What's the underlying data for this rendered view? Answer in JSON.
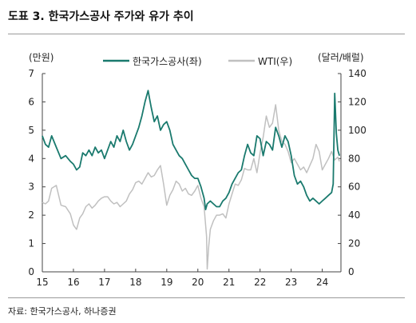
{
  "figure": {
    "title": "도표 3. 한국가스공사 주가와 유가 추이",
    "source": "자료: 한국가스공사, 하나증권"
  },
  "chart_data": {
    "type": "line",
    "x_tick_labels": [
      "15",
      "16",
      "17",
      "18",
      "19",
      "20",
      "21",
      "22",
      "23",
      "24"
    ],
    "xlim": [
      2015,
      2024.6
    ],
    "y_left": {
      "unit": "(만원)",
      "ylim": [
        0,
        7
      ],
      "ticks": [
        0,
        1,
        2,
        3,
        4,
        5,
        6,
        7
      ]
    },
    "y_right": {
      "unit": "(달러/배럴)",
      "ylim": [
        0,
        140
      ],
      "ticks": [
        0,
        20,
        40,
        60,
        80,
        100,
        120,
        140
      ]
    },
    "grid": false,
    "legend_position": "top",
    "series": [
      {
        "name": "한국가스공사(좌)",
        "axis": "left",
        "color": "#1a7a6e",
        "x": [
          2015.0,
          2015.1,
          2015.2,
          2015.3,
          2015.45,
          2015.6,
          2015.75,
          2015.9,
          2016.0,
          2016.1,
          2016.2,
          2016.3,
          2016.4,
          2016.5,
          2016.6,
          2016.7,
          2016.8,
          2016.9,
          2017.0,
          2017.1,
          2017.2,
          2017.3,
          2017.4,
          2017.5,
          2017.6,
          2017.7,
          2017.8,
          2017.9,
          2018.0,
          2018.1,
          2018.2,
          2018.3,
          2018.4,
          2018.45,
          2018.5,
          2018.6,
          2018.7,
          2018.8,
          2018.9,
          2019.0,
          2019.1,
          2019.2,
          2019.3,
          2019.4,
          2019.5,
          2019.6,
          2019.7,
          2019.8,
          2019.9,
          2020.0,
          2020.1,
          2020.2,
          2020.25,
          2020.3,
          2020.4,
          2020.5,
          2020.6,
          2020.7,
          2020.8,
          2020.9,
          2021.0,
          2021.1,
          2021.2,
          2021.3,
          2021.4,
          2021.5,
          2021.6,
          2021.7,
          2021.8,
          2021.9,
          2022.0,
          2022.1,
          2022.2,
          2022.3,
          2022.4,
          2022.5,
          2022.6,
          2022.7,
          2022.8,
          2022.9,
          2023.0,
          2023.1,
          2023.2,
          2023.3,
          2023.4,
          2023.5,
          2023.6,
          2023.7,
          2023.8,
          2023.9,
          2024.0,
          2024.1,
          2024.2,
          2024.3,
          2024.35,
          2024.4,
          2024.45,
          2024.5,
          2024.55
        ],
        "values": [
          4.8,
          4.5,
          4.4,
          4.8,
          4.4,
          4.0,
          4.1,
          3.9,
          3.8,
          3.6,
          3.7,
          4.2,
          4.1,
          4.3,
          4.1,
          4.4,
          4.2,
          4.3,
          4.0,
          4.3,
          4.6,
          4.4,
          4.8,
          4.6,
          5.0,
          4.6,
          4.3,
          4.5,
          4.8,
          5.1,
          5.5,
          6.0,
          6.4,
          6.1,
          5.8,
          5.3,
          5.5,
          5.0,
          5.2,
          5.3,
          5.0,
          4.5,
          4.3,
          4.1,
          4.0,
          3.8,
          3.6,
          3.4,
          3.3,
          3.3,
          3.0,
          2.6,
          2.2,
          2.4,
          2.5,
          2.4,
          2.3,
          2.3,
          2.5,
          2.6,
          2.8,
          3.1,
          3.3,
          3.5,
          3.6,
          4.1,
          4.5,
          4.2,
          4.1,
          4.8,
          4.7,
          4.1,
          4.6,
          4.5,
          4.3,
          5.1,
          4.8,
          4.4,
          4.8,
          4.6,
          4.1,
          3.4,
          3.1,
          3.2,
          3.0,
          2.7,
          2.5,
          2.6,
          2.5,
          2.4,
          2.5,
          2.6,
          2.7,
          2.8,
          3.1,
          6.3,
          4.9,
          4.3,
          4.1
        ]
      },
      {
        "name": "WTI(우)",
        "axis": "right",
        "color": "#c0c0c0",
        "x": [
          2015.0,
          2015.1,
          2015.2,
          2015.3,
          2015.45,
          2015.6,
          2015.75,
          2015.9,
          2016.0,
          2016.1,
          2016.2,
          2016.3,
          2016.4,
          2016.5,
          2016.6,
          2016.7,
          2016.8,
          2016.9,
          2017.0,
          2017.1,
          2017.2,
          2017.3,
          2017.4,
          2017.5,
          2017.6,
          2017.7,
          2017.8,
          2017.9,
          2018.0,
          2018.1,
          2018.2,
          2018.3,
          2018.4,
          2018.5,
          2018.6,
          2018.7,
          2018.8,
          2018.9,
          2019.0,
          2019.1,
          2019.2,
          2019.3,
          2019.4,
          2019.5,
          2019.6,
          2019.7,
          2019.8,
          2019.9,
          2020.0,
          2020.1,
          2020.2,
          2020.28,
          2020.3,
          2020.35,
          2020.4,
          2020.5,
          2020.6,
          2020.7,
          2020.8,
          2020.9,
          2021.0,
          2021.1,
          2021.2,
          2021.3,
          2021.4,
          2021.5,
          2021.6,
          2021.7,
          2021.8,
          2021.9,
          2022.0,
          2022.1,
          2022.2,
          2022.3,
          2022.4,
          2022.5,
          2022.6,
          2022.7,
          2022.8,
          2022.9,
          2023.0,
          2023.1,
          2023.2,
          2023.3,
          2023.4,
          2023.5,
          2023.6,
          2023.7,
          2023.8,
          2023.9,
          2024.0,
          2024.1,
          2024.2,
          2024.3,
          2024.4,
          2024.5,
          2024.55
        ],
        "values": [
          49,
          48,
          50,
          59,
          61,
          47,
          46,
          41,
          33,
          30,
          38,
          41,
          46,
          48,
          45,
          47,
          50,
          52,
          53,
          53,
          50,
          48,
          49,
          46,
          48,
          50,
          55,
          58,
          63,
          64,
          62,
          66,
          70,
          67,
          68,
          72,
          75,
          62,
          47,
          54,
          58,
          64,
          62,
          57,
          59,
          55,
          54,
          57,
          61,
          52,
          46,
          25,
          2,
          18,
          30,
          36,
          40,
          40,
          41,
          38,
          48,
          55,
          62,
          61,
          65,
          73,
          72,
          72,
          80,
          70,
          84,
          95,
          110,
          102,
          105,
          118,
          100,
          92,
          90,
          85,
          77,
          80,
          76,
          72,
          74,
          70,
          75,
          80,
          90,
          85,
          72,
          76,
          80,
          85,
          79,
          81,
          78
        ]
      }
    ]
  }
}
